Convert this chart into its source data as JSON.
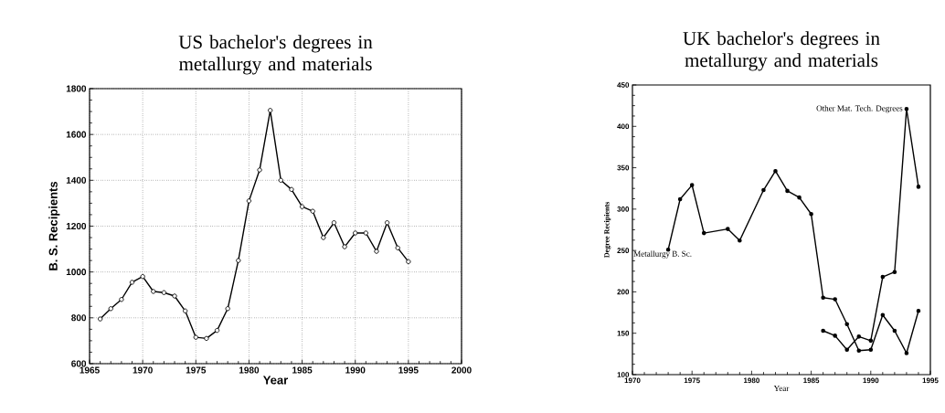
{
  "chart_data": [
    {
      "type": "line",
      "title": "US bachelor's degrees in metallurgy and materials",
      "xlabel": "Year",
      "ylabel": "B. S. Recipients",
      "x": [
        1966,
        1967,
        1968,
        1969,
        1970,
        1971,
        1972,
        1973,
        1974,
        1975,
        1976,
        1977,
        1978,
        1979,
        1980,
        1981,
        1982,
        1983,
        1984,
        1985,
        1986,
        1987,
        1988,
        1989,
        1990,
        1991,
        1992,
        1993,
        1994,
        1995
      ],
      "series": [
        {
          "color": "#000000",
          "values": [
            795,
            840,
            880,
            955,
            980,
            915,
            910,
            895,
            830,
            715,
            710,
            745,
            840,
            1050,
            1310,
            1445,
            1705,
            1400,
            1360,
            1285,
            1265,
            1150,
            1215,
            1110,
            1170,
            1170,
            1090,
            1215,
            1105,
            1045
          ]
        }
      ],
      "xlim": [
        1965,
        2000
      ],
      "xticks": [
        1965,
        1970,
        1975,
        1980,
        1985,
        1990,
        1995,
        2000
      ],
      "ylim": [
        600,
        1800
      ],
      "yticks": [
        600,
        800,
        1000,
        1200,
        1400,
        1600,
        1800
      ],
      "grid": true,
      "legend": false,
      "marker": "circle",
      "line_style": "solid"
    },
    {
      "type": "line",
      "title": "UK bachelor's degrees in metallurgy and materials",
      "xlabel": "Year",
      "ylabel": "Degree Recipients",
      "series": [
        {
          "name": "Metallurgy B. Sc.",
          "color": "#000000",
          "x": [
            1973,
            1974,
            1975,
            1976,
            1978,
            1979,
            1981,
            1982,
            1983,
            1984,
            1985,
            1986,
            1987,
            1988,
            1989,
            1990,
            1991,
            1992,
            1993,
            1994
          ],
          "values": [
            251,
            312,
            329,
            271,
            276,
            262,
            323,
            346,
            322,
            314,
            294,
            193,
            191,
            161,
            129,
            130,
            172,
            153,
            126,
            177
          ]
        },
        {
          "name": "Other Mat. Tech. Degrees",
          "color": "#000000",
          "x": [
            1986,
            1987,
            1988,
            1989,
            1990,
            1991,
            1992,
            1993,
            1994
          ],
          "values": [
            153,
            147,
            130,
            146,
            141,
            218,
            224,
            421,
            327
          ]
        }
      ],
      "xlim": [
        1970,
        1995
      ],
      "xticks": [
        1970,
        1975,
        1980,
        1985,
        1990,
        1995
      ],
      "ylim": [
        100,
        450
      ],
      "yticks": [
        100,
        150,
        200,
        250,
        300,
        350,
        400,
        450
      ],
      "grid": false,
      "marker": "circle",
      "line_style": "solid"
    }
  ]
}
